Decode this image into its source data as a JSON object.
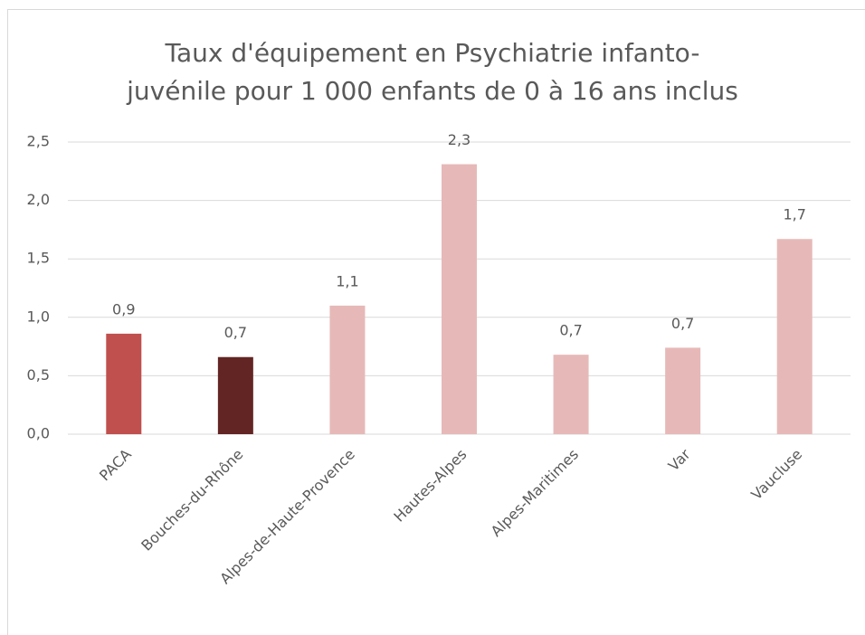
{
  "chart_data": {
    "type": "bar",
    "title": [
      "Taux d'équipement en Psychiatrie infanto-",
      "juvénile pour 1 000 enfants de 0 à 16 ans inclus"
    ],
    "categories": [
      "PACA",
      "Bouches-du-Rhône",
      "Alpes-de-Haute-Provence",
      "Hautes-Alpes",
      "Alpes-Maritimes",
      "Var",
      "Vaucluse"
    ],
    "values": [
      0.86,
      0.66,
      1.1,
      2.31,
      0.68,
      0.74,
      1.67
    ],
    "value_labels": [
      "0,9",
      "0,7",
      "1,1",
      "2,3",
      "0,7",
      "0,7",
      "1,7"
    ],
    "colors": [
      "#c0504d",
      "#632523",
      "#e6b9b8",
      "#e6b9b8",
      "#e6b9b8",
      "#e6b9b8",
      "#e6b9b8"
    ],
    "ylim": [
      0,
      2.5
    ],
    "yticks": [
      {
        "value": 0,
        "label": "0,0"
      },
      {
        "value": 0.5,
        "label": "0,5"
      },
      {
        "value": 1,
        "label": "1,0"
      },
      {
        "value": 1.5,
        "label": "1,5"
      },
      {
        "value": 2,
        "label": "2,0"
      },
      {
        "value": 2.5,
        "label": "2,5"
      }
    ],
    "grid": true
  }
}
